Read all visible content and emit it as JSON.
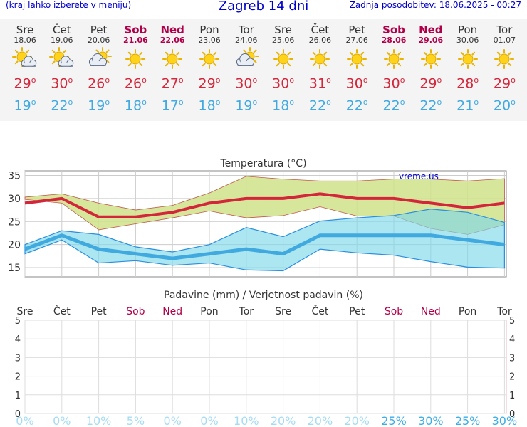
{
  "header": {
    "left_note": "(kraj lahko izberete v meniju)",
    "title": "Zagreb 14 dni",
    "updated": "Zadnja posodobitev: 18.06.2025 - 00:27"
  },
  "days": [
    {
      "name": "Sre",
      "date": "18.06",
      "weekend": false,
      "icon": "sun-cloud-icon",
      "tmax": "29",
      "tmin": "19"
    },
    {
      "name": "Čet",
      "date": "19.06",
      "weekend": false,
      "icon": "sun-cloud-icon",
      "tmax": "30",
      "tmin": "22"
    },
    {
      "name": "Pet",
      "date": "20.06",
      "weekend": false,
      "icon": "cloud-sun-icon",
      "tmax": "26",
      "tmin": "19"
    },
    {
      "name": "Sob",
      "date": "21.06",
      "weekend": true,
      "icon": "sun-icon",
      "tmax": "26",
      "tmin": "18"
    },
    {
      "name": "Ned",
      "date": "22.06",
      "weekend": true,
      "icon": "sun-icon",
      "tmax": "27",
      "tmin": "17"
    },
    {
      "name": "Pon",
      "date": "23.06",
      "weekend": false,
      "icon": "sun-icon",
      "tmax": "29",
      "tmin": "18"
    },
    {
      "name": "Tor",
      "date": "24.06",
      "weekend": false,
      "icon": "cloud-sun-icon",
      "tmax": "30",
      "tmin": "19"
    },
    {
      "name": "Sre",
      "date": "25.06",
      "weekend": false,
      "icon": "sun-icon",
      "tmax": "30",
      "tmin": "18"
    },
    {
      "name": "Čet",
      "date": "26.06",
      "weekend": false,
      "icon": "sun-icon",
      "tmax": "31",
      "tmin": "22"
    },
    {
      "name": "Pet",
      "date": "27.06",
      "weekend": false,
      "icon": "sun-icon",
      "tmax": "30",
      "tmin": "22"
    },
    {
      "name": "Sob",
      "date": "28.06",
      "weekend": true,
      "icon": "sun-icon",
      "tmax": "30",
      "tmin": "22"
    },
    {
      "name": "Ned",
      "date": "29.06",
      "weekend": true,
      "icon": "sun-icon",
      "tmax": "29",
      "tmin": "22"
    },
    {
      "name": "Pon",
      "date": "30.06",
      "weekend": false,
      "icon": "sun-icon",
      "tmax": "28",
      "tmin": "21"
    },
    {
      "name": "Tor",
      "date": "01.07",
      "weekend": false,
      "icon": "sun-icon",
      "tmax": "29",
      "tmin": "20"
    }
  ],
  "degree_symbol": "o",
  "colors": {
    "tmax": "#d4263a",
    "tmin": "#3fa9e0",
    "weekend": "#b0004a",
    "title": "#0000cc",
    "max_band": "#cfe28a",
    "min_band": "#7fd8ea"
  },
  "chart_data": [
    {
      "type": "line",
      "title": "Temperatura (°C)",
      "watermark": "vreme.us",
      "xlabel": "",
      "ylabel": "",
      "ylim": [
        13,
        36
      ],
      "yticks": [
        15,
        20,
        25,
        30,
        35
      ],
      "grid": true,
      "series": [
        {
          "name": "",
          "role": "max",
          "values": [
            29,
            30,
            26,
            26,
            27,
            29,
            30,
            30,
            31,
            30,
            30,
            29,
            28,
            29
          ]
        },
        {
          "name": "",
          "role": "min",
          "values": [
            19,
            22,
            19,
            18,
            17,
            18,
            19,
            18,
            22,
            22,
            22,
            22,
            21,
            20
          ]
        }
      ],
      "bands": [
        {
          "role": "max_band",
          "low": [
            29.8,
            29,
            23.2,
            24.5,
            25.8,
            27.3,
            25.8,
            26.3,
            28.2,
            26.2,
            26.2,
            23.5,
            22.2,
            24.3
          ],
          "high": [
            30.3,
            31,
            29,
            27.5,
            28.5,
            31.2,
            34.8,
            34.2,
            33.8,
            33.8,
            34.2,
            34.2,
            33.8,
            34.3
          ]
        },
        {
          "role": "min_band",
          "low": [
            18,
            21,
            16,
            16.5,
            15.5,
            16,
            14.5,
            14.3,
            19,
            18.2,
            17.7,
            16.3,
            15.1,
            14.9
          ],
          "high": [
            20,
            23,
            22.2,
            19.5,
            18.4,
            20,
            23.7,
            21.7,
            25.1,
            25.8,
            26.3,
            27.7,
            27,
            24.8
          ]
        }
      ]
    },
    {
      "type": "bar",
      "title": "Padavine (mm) / Verjetnost padavin (%)",
      "xlabel": "",
      "ylabel": "",
      "ylim": [
        0,
        5
      ],
      "yticks": [
        0,
        1,
        2,
        3,
        4,
        5
      ],
      "grid": true,
      "categories": [
        "Sre",
        "Čet",
        "Pet",
        "Sob",
        "Ned",
        "Pon",
        "Tor",
        "Sre",
        "Čet",
        "Pet",
        "Sob",
        "Ned",
        "Pon",
        "Tor"
      ],
      "values": [
        0,
        0,
        0,
        0,
        0,
        0,
        0,
        0,
        0,
        0,
        0,
        0,
        0,
        0
      ],
      "probability": [
        "0%",
        "0%",
        "10%",
        "5%",
        "0%",
        "0%",
        "10%",
        "20%",
        "20%",
        "20%",
        "25%",
        "30%",
        "25%",
        "30%"
      ]
    }
  ]
}
